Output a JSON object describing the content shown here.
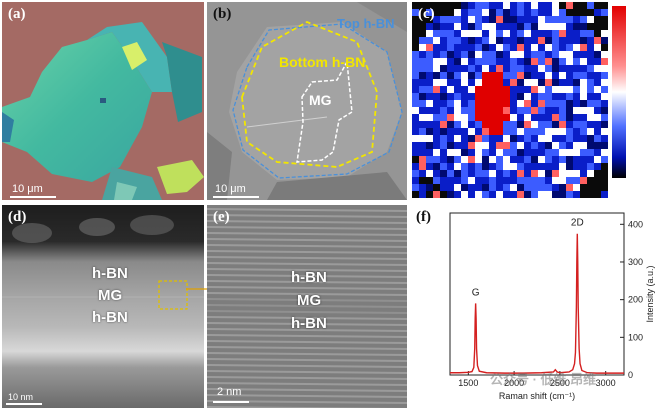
{
  "panels": {
    "a": {
      "label": "(a)",
      "scale": "10 μm"
    },
    "b": {
      "label": "(b)",
      "scale": "10 μm",
      "top_label": "Top h-BN",
      "bottom_label": "Bottom h-BN",
      "mg_label": "MG"
    },
    "c": {
      "label": "(c)"
    },
    "d": {
      "label": "(d)",
      "scale": "10 nm",
      "layers": [
        "h-BN",
        "MG",
        "h-BN"
      ]
    },
    "e": {
      "label": "(e)",
      "scale": "2 nm",
      "layers": [
        "h-BN",
        "MG",
        "h-BN"
      ]
    },
    "f": {
      "label": "(f)"
    }
  },
  "colors": {
    "top_outline": "#4a90d9",
    "bottom_outline": "#f2e600",
    "raman_line": "#d42020",
    "zoom_arrow": "#e0a000"
  },
  "watermark": "公众号 · 低维 昂维",
  "chart_data": {
    "type": "line",
    "title": "",
    "xlabel": "Raman shift (cm⁻¹)",
    "ylabel": "Intensity (a.u.)",
    "xlim": [
      1300,
      3200
    ],
    "ylim": [
      0,
      430
    ],
    "xticks": [
      1500,
      2000,
      2500,
      3000
    ],
    "yticks": [
      0,
      100,
      200,
      300,
      400
    ],
    "grid": false,
    "peaks": [
      {
        "name": "G",
        "x": 1580,
        "y": 190
      },
      {
        "name": "2D",
        "x": 2690,
        "y": 375
      }
    ],
    "series": [
      {
        "x": [
          1300,
          1400,
          1500,
          1540,
          1560,
          1570,
          1575,
          1580,
          1585,
          1590,
          1600,
          1620,
          1700,
          1900,
          2100,
          2300,
          2430,
          2450,
          2470,
          2500,
          2600,
          2640,
          2660,
          2670,
          2680,
          2685,
          2690,
          2695,
          2700,
          2710,
          2720,
          2740,
          2800,
          2900,
          3000,
          3100,
          3200
        ],
        "values": [
          6,
          6,
          7,
          9,
          20,
          70,
          150,
          190,
          150,
          70,
          25,
          10,
          6,
          5,
          5,
          6,
          8,
          14,
          8,
          6,
          8,
          14,
          30,
          60,
          180,
          300,
          375,
          300,
          180,
          70,
          30,
          12,
          6,
          5,
          5,
          5,
          5
        ]
      }
    ]
  }
}
